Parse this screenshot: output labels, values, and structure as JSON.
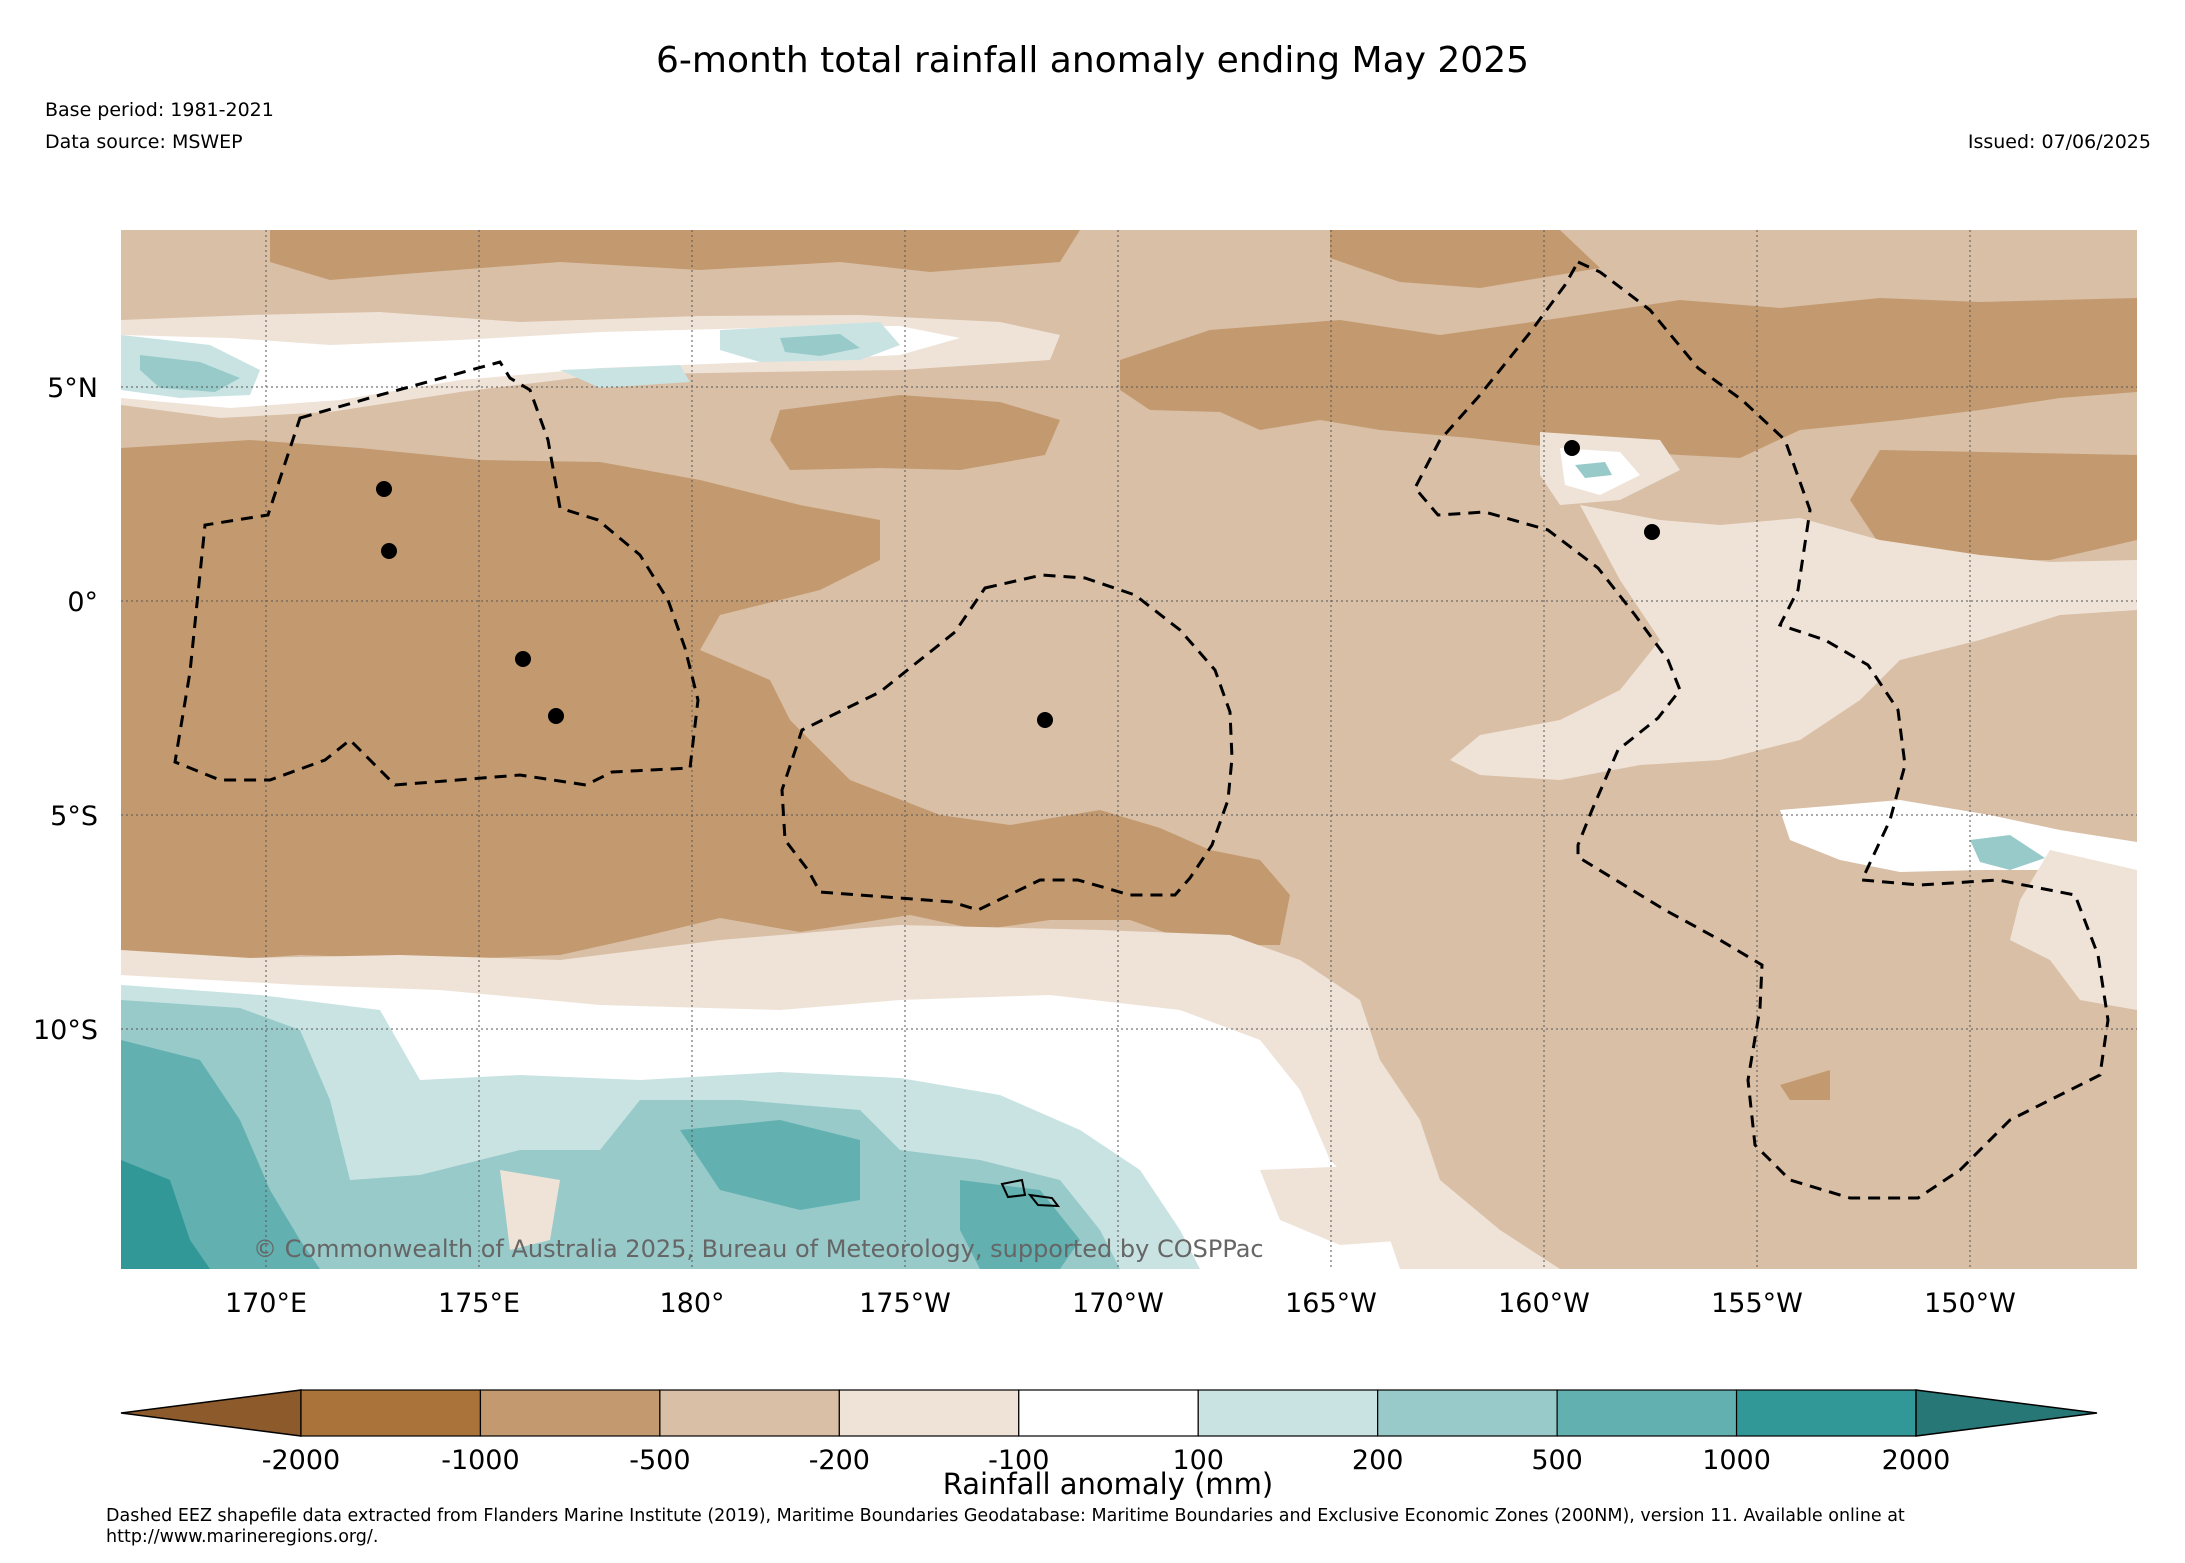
{
  "title": "6-month total rainfall anomaly ending May 2025",
  "base_period": "Base period: 1981-2021",
  "data_source": "Data source: MSWEP",
  "issued": "Issued: 07/06/2025",
  "copyright": "© Commonwealth of Australia 2025, Bureau of Meteorology, supported by COSPPac",
  "footnote_line1": "Dashed EEZ shapefile data extracted from Flanders Marine Institute (2019), Maritime Boundaries Geodatabase: Maritime Boundaries and Exclusive Economic Zones (200NM), version 11. Available online at",
  "footnote_line2": "http://www.marineregions.org/.",
  "map": {
    "lon_labels": [
      "170°E",
      "175°E",
      "180°",
      "175°W",
      "170°W",
      "165°W",
      "160°W",
      "155°W",
      "150°W"
    ],
    "lat_labels": [
      "5°N",
      "0°",
      "5°S",
      "10°S"
    ],
    "lon_range": [
      166.5,
      -146.3
    ],
    "lat_range": [
      -15.5,
      8.8
    ]
  },
  "colorbar": {
    "title": "Rainfall anomaly (mm)",
    "tick_labels": [
      "-2000",
      "-1000",
      "-500",
      "-200",
      "-100",
      "100",
      "200",
      "500",
      "1000",
      "2000"
    ],
    "colors": [
      "#8c5a2b",
      "#a97339",
      "#c39a6f",
      "#d9bfa6",
      "#efe3d8",
      "#ffffff",
      "#c9e3e3",
      "#98caca",
      "#62b0b0",
      "#319797",
      "#277777"
    ]
  },
  "legend_colors": {
    "brown_dark": "#a97339",
    "brown": "#c39a6f",
    "tan": "#d9bfa6",
    "light_tan": "#efe3d8",
    "white": "#ffffff",
    "teal_light": "#c9e3e3",
    "teal": "#98caca",
    "teal_mid": "#62b0b0",
    "teal_dark": "#319797"
  }
}
